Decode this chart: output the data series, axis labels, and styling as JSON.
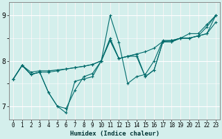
{
  "xlabel": "Humidex (Indice chaleur)",
  "bg_color": "#d4efec",
  "grid_color": "#b8dbd8",
  "line_color": "#006b6b",
  "xlim": [
    -0.5,
    23.5
  ],
  "ylim": [
    6.7,
    9.3
  ],
  "yticks": [
    7,
    8,
    9
  ],
  "xticks": [
    0,
    1,
    2,
    3,
    4,
    5,
    6,
    7,
    8,
    9,
    10,
    11,
    12,
    13,
    14,
    15,
    16,
    17,
    18,
    19,
    20,
    21,
    22,
    23
  ],
  "lines": [
    [
      7.6,
      7.9,
      7.75,
      7.78,
      7.78,
      7.8,
      7.82,
      7.85,
      7.88,
      7.92,
      8.0,
      8.5,
      8.05,
      8.1,
      8.15,
      8.2,
      8.28,
      8.43,
      8.45,
      8.5,
      8.5,
      8.55,
      8.6,
      9.0
    ],
    [
      7.6,
      7.9,
      7.7,
      7.75,
      7.3,
      7.0,
      6.95,
      7.35,
      7.65,
      7.72,
      8.0,
      9.0,
      8.4,
      7.5,
      7.65,
      7.7,
      8.0,
      8.45,
      8.45,
      8.5,
      8.6,
      8.6,
      8.8,
      9.0
    ],
    [
      7.6,
      7.9,
      7.7,
      7.75,
      7.3,
      7.0,
      6.85,
      7.55,
      7.6,
      7.65,
      8.0,
      8.45,
      8.05,
      8.1,
      8.1,
      7.65,
      7.8,
      8.42,
      8.42,
      8.5,
      8.5,
      8.55,
      8.6,
      8.85
    ],
    [
      7.6,
      7.9,
      7.7,
      7.75,
      7.75,
      7.78,
      7.82,
      7.85,
      7.88,
      7.92,
      8.0,
      8.45,
      8.05,
      8.1,
      8.15,
      7.65,
      7.8,
      8.42,
      8.42,
      8.5,
      8.5,
      8.55,
      8.75,
      9.0
    ]
  ],
  "figsize": [
    3.2,
    2.0
  ],
  "dpi": 100
}
